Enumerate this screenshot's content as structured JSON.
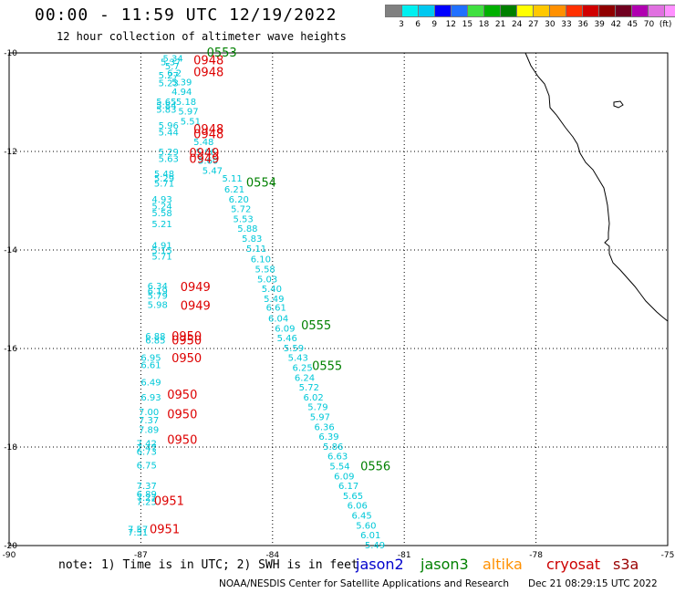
{
  "title": "00:00 - 11:59 UTC 12/19/2022",
  "subtitle": "12 hour collection of altimeter wave heights",
  "colorbar": {
    "colors": [
      "#808080",
      "#00f0f0",
      "#00c8f0",
      "#0000ff",
      "#2070ff",
      "#40e040",
      "#00b000",
      "#008000",
      "#ffff00",
      "#ffc800",
      "#ff9000",
      "#ff3000",
      "#d00000",
      "#900000",
      "#700020",
      "#b000b0",
      "#e070e0",
      "#ff90ff",
      "#000000"
    ],
    "labels": [
      "3",
      "6",
      "9",
      "12",
      "15",
      "18",
      "21",
      "24",
      "27",
      "30",
      "33",
      "36",
      "39",
      "42",
      "45",
      "70",
      "(ft)"
    ]
  },
  "axes": {
    "lon_ticks": [
      "-90",
      "-87",
      "-84",
      "-81",
      "-78",
      "-75"
    ],
    "lat_ticks": [
      "-10",
      "-12",
      "-14",
      "-16",
      "-18",
      "-20"
    ]
  },
  "note": "note: 1) Time is in UTC; 2) SWH is in feet",
  "legend": [
    {
      "name": "jason2",
      "color": "#0000cc"
    },
    {
      "name": "jason3",
      "color": "#008000"
    },
    {
      "name": "altika",
      "color": "#ff9000"
    },
    {
      "name": "cryosat",
      "color": "#cc0000"
    },
    {
      "name": "s3a",
      "color": "#990000"
    }
  ],
  "credit": "NOAA/NESDIS Center for Satellite Applications and Research",
  "timestamp": "Dec 21 08:29:15 UTC 2022",
  "colors": {
    "cyan": "#00c8d8",
    "jason3": "#008000",
    "cryosat": "#dd0000"
  },
  "tracks": {
    "cryosat": {
      "values": [
        {
          "lon": -86.5,
          "lat": -10.1,
          "v": "5.34"
        },
        {
          "lon": -86.55,
          "lat": -10.18,
          "v": "5.37"
        },
        {
          "lon": -86.45,
          "lat": -10.26,
          "v": "5.7"
        },
        {
          "lon": -86.6,
          "lat": -10.44,
          "v": "5.27"
        },
        {
          "lon": -86.4,
          "lat": -10.4,
          "v": "6.2"
        },
        {
          "lon": -86.6,
          "lat": -10.6,
          "v": "5.23"
        },
        {
          "lon": -86.3,
          "lat": -10.58,
          "v": "5.39"
        },
        {
          "lon": -86.3,
          "lat": -10.78,
          "v": "4.94"
        },
        {
          "lon": -86.65,
          "lat": -10.98,
          "v": "5.65"
        },
        {
          "lon": -86.65,
          "lat": -11.06,
          "v": "5.84"
        },
        {
          "lon": -86.65,
          "lat": -11.14,
          "v": "5.83"
        },
        {
          "lon": -86.2,
          "lat": -10.98,
          "v": "5.18"
        },
        {
          "lon": -86.15,
          "lat": -11.18,
          "v": "5.97"
        },
        {
          "lon": -86.1,
          "lat": -11.38,
          "v": "5.51"
        },
        {
          "lon": -86.6,
          "lat": -11.46,
          "v": "5.96"
        },
        {
          "lon": -86.6,
          "lat": -11.6,
          "v": "5.44"
        },
        {
          "lon": -85.8,
          "lat": -11.8,
          "v": "5.48"
        },
        {
          "lon": -86.6,
          "lat": -12.0,
          "v": "5.29"
        },
        {
          "lon": -86.6,
          "lat": -12.14,
          "v": "5.63"
        },
        {
          "lon": -85.75,
          "lat": -12.0,
          "v": "5.66"
        },
        {
          "lon": -85.7,
          "lat": -12.18,
          "v": "5.60"
        },
        {
          "lon": -85.6,
          "lat": -12.38,
          "v": "5.47"
        },
        {
          "lon": -86.7,
          "lat": -12.44,
          "v": "5.48"
        },
        {
          "lon": -86.7,
          "lat": -12.54,
          "v": "5.29"
        },
        {
          "lon": -86.7,
          "lat": -12.64,
          "v": "5.71"
        },
        {
          "lon": -86.75,
          "lat": -12.96,
          "v": "4.93"
        },
        {
          "lon": -86.75,
          "lat": -13.1,
          "v": "5.24"
        },
        {
          "lon": -86.75,
          "lat": -13.24,
          "v": "5.58"
        },
        {
          "lon": -86.75,
          "lat": -13.46,
          "v": "5.21"
        },
        {
          "lon": -86.75,
          "lat": -13.9,
          "v": "4.91"
        },
        {
          "lon": -86.75,
          "lat": -14.0,
          "v": "5.15"
        },
        {
          "lon": -86.75,
          "lat": -14.12,
          "v": "5.71"
        },
        {
          "lon": -86.85,
          "lat": -14.72,
          "v": "6.34"
        },
        {
          "lon": -86.85,
          "lat": -14.82,
          "v": "6.19"
        },
        {
          "lon": -86.85,
          "lat": -14.92,
          "v": "5.79"
        },
        {
          "lon": -86.85,
          "lat": -15.1,
          "v": "5.98"
        },
        {
          "lon": -86.9,
          "lat": -15.74,
          "v": "6.88"
        },
        {
          "lon": -86.9,
          "lat": -15.82,
          "v": "6.85"
        },
        {
          "lon": -87.0,
          "lat": -16.18,
          "v": "6.95"
        },
        {
          "lon": -87.0,
          "lat": -16.32,
          "v": "6.61"
        },
        {
          "lon": -87.0,
          "lat": -16.68,
          "v": "6.49"
        },
        {
          "lon": -87.0,
          "lat": -16.98,
          "v": "6.93"
        },
        {
          "lon": -87.05,
          "lat": -17.28,
          "v": "7.00"
        },
        {
          "lon": -87.05,
          "lat": -17.44,
          "v": "7.37"
        },
        {
          "lon": -87.05,
          "lat": -17.64,
          "v": "7.89"
        },
        {
          "lon": -87.1,
          "lat": -17.92,
          "v": "7.42"
        },
        {
          "lon": -87.1,
          "lat": -18.0,
          "v": "7.47"
        },
        {
          "lon": -87.1,
          "lat": -18.08,
          "v": "6.73"
        },
        {
          "lon": -87.1,
          "lat": -18.36,
          "v": "6.75"
        },
        {
          "lon": -87.1,
          "lat": -18.78,
          "v": "7.37"
        },
        {
          "lon": -87.1,
          "lat": -18.94,
          "v": "6.89"
        },
        {
          "lon": -87.1,
          "lat": -19.02,
          "v": "7.27"
        },
        {
          "lon": -87.1,
          "lat": -19.1,
          "v": "7.25"
        },
        {
          "lon": -87.3,
          "lat": -19.66,
          "v": "7.57"
        },
        {
          "lon": -87.3,
          "lat": -19.72,
          "v": "7.51"
        }
      ],
      "times": [
        {
          "lon": -85.8,
          "lat": -10.16,
          "v": "0948"
        },
        {
          "lon": -85.8,
          "lat": -10.4,
          "v": "0948"
        },
        {
          "lon": -85.8,
          "lat": -11.56,
          "v": "0948"
        },
        {
          "lon": -85.8,
          "lat": -11.66,
          "v": "0948"
        },
        {
          "lon": -85.9,
          "lat": -12.04,
          "v": "0949"
        },
        {
          "lon": -85.9,
          "lat": -12.16,
          "v": "0949"
        },
        {
          "lon": -86.1,
          "lat": -14.76,
          "v": "0949"
        },
        {
          "lon": -86.1,
          "lat": -15.14,
          "v": "0949"
        },
        {
          "lon": -86.3,
          "lat": -15.76,
          "v": "0950"
        },
        {
          "lon": -86.3,
          "lat": -15.84,
          "v": "0950"
        },
        {
          "lon": -86.3,
          "lat": -16.2,
          "v": "0950"
        },
        {
          "lon": -86.4,
          "lat": -16.94,
          "v": "0950"
        },
        {
          "lon": -86.4,
          "lat": -17.34,
          "v": "0950"
        },
        {
          "lon": -86.4,
          "lat": -17.86,
          "v": "0950"
        },
        {
          "lon": -86.7,
          "lat": -19.1,
          "v": "0951"
        },
        {
          "lon": -86.8,
          "lat": -19.68,
          "v": "0951"
        }
      ]
    },
    "jason3": {
      "values": [
        {
          "lon": -85.15,
          "lat": -12.54,
          "v": "5.11"
        },
        {
          "lon": -85.1,
          "lat": -12.76,
          "v": "6.21"
        },
        {
          "lon": -85.0,
          "lat": -12.96,
          "v": "6.20"
        },
        {
          "lon": -84.95,
          "lat": -13.16,
          "v": "5.72"
        },
        {
          "lon": -84.9,
          "lat": -13.36,
          "v": "5.53"
        },
        {
          "lon": -84.8,
          "lat": -13.56,
          "v": "5.88"
        },
        {
          "lon": -84.7,
          "lat": -13.76,
          "v": "5.83"
        },
        {
          "lon": -84.6,
          "lat": -13.96,
          "v": "5.11"
        },
        {
          "lon": -84.5,
          "lat": -14.18,
          "v": "6.10"
        },
        {
          "lon": -84.4,
          "lat": -14.38,
          "v": "5.58"
        },
        {
          "lon": -84.35,
          "lat": -14.58,
          "v": "5.03"
        },
        {
          "lon": -84.25,
          "lat": -14.78,
          "v": "5.40"
        },
        {
          "lon": -84.2,
          "lat": -14.98,
          "v": "5.49"
        },
        {
          "lon": -84.15,
          "lat": -15.16,
          "v": "6.61"
        },
        {
          "lon": -84.1,
          "lat": -15.38,
          "v": "6.04"
        },
        {
          "lon": -83.95,
          "lat": -15.58,
          "v": "6.09"
        },
        {
          "lon": -83.9,
          "lat": -15.78,
          "v": "5.46"
        },
        {
          "lon": -83.75,
          "lat": -15.98,
          "v": "5.59"
        },
        {
          "lon": -83.65,
          "lat": -16.18,
          "v": "5.43"
        },
        {
          "lon": -83.55,
          "lat": -16.38,
          "v": "6.25"
        },
        {
          "lon": -83.5,
          "lat": -16.58,
          "v": "6.24"
        },
        {
          "lon": -83.4,
          "lat": -16.78,
          "v": "5.72"
        },
        {
          "lon": -83.3,
          "lat": -16.98,
          "v": "6.02"
        },
        {
          "lon": -83.2,
          "lat": -17.18,
          "v": "5.79"
        },
        {
          "lon": -83.15,
          "lat": -17.38,
          "v": "5.97"
        },
        {
          "lon": -83.05,
          "lat": -17.58,
          "v": "6.36"
        },
        {
          "lon": -82.95,
          "lat": -17.78,
          "v": "6.39"
        },
        {
          "lon": -82.85,
          "lat": -17.98,
          "v": "5.86"
        },
        {
          "lon": -82.75,
          "lat": -18.18,
          "v": "6.63"
        },
        {
          "lon": -82.7,
          "lat": -18.38,
          "v": "5.54"
        },
        {
          "lon": -82.6,
          "lat": -18.58,
          "v": "6.09"
        },
        {
          "lon": -82.5,
          "lat": -18.78,
          "v": "6.17"
        },
        {
          "lon": -82.4,
          "lat": -18.98,
          "v": "5.65"
        },
        {
          "lon": -82.3,
          "lat": -19.18,
          "v": "6.06"
        },
        {
          "lon": -82.2,
          "lat": -19.38,
          "v": "6.45"
        },
        {
          "lon": -82.1,
          "lat": -19.58,
          "v": "5.60"
        },
        {
          "lon": -82.0,
          "lat": -19.78,
          "v": "6.01"
        },
        {
          "lon": -81.9,
          "lat": -19.98,
          "v": "5.49"
        }
      ],
      "times": [
        {
          "lon": -85.5,
          "lat": -10.0,
          "v": "0553"
        },
        {
          "lon": -84.6,
          "lat": -12.64,
          "v": "0554"
        },
        {
          "lon": -83.35,
          "lat": -15.54,
          "v": "0555"
        },
        {
          "lon": -83.1,
          "lat": -16.36,
          "v": "0555"
        },
        {
          "lon": -82.0,
          "lat": -18.4,
          "v": "0556"
        }
      ]
    }
  }
}
